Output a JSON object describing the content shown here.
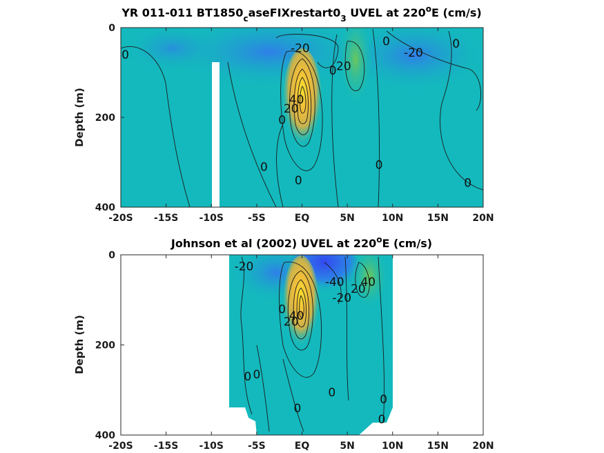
{
  "chart_data": [
    {
      "type": "heatmap",
      "title_parts": {
        "main": "YR 011-011 BT1850",
        "sub1": "c",
        "mid": "aseFIXrestart0",
        "sub2": "3",
        "after": " UVEL at 220",
        "sup": "o",
        "end": "E (cm/s)"
      },
      "ylabel": "Depth (m)",
      "xlabel": "",
      "x_ticks": [
        "-20S",
        "-15S",
        "-10S",
        "-5S",
        "EQ",
        "5N",
        "10N",
        "15N",
        "20N"
      ],
      "y_ticks": [
        "0",
        "200",
        "400"
      ],
      "xlim": [
        -20,
        20
      ],
      "ylim": [
        400,
        0
      ],
      "contour_interval": 20,
      "colors": {
        "background": "#13b9bd",
        "negative": "#2f8ce8",
        "jet_core": "#f6d630",
        "jet_mid": "#e2a94a"
      },
      "contour_labels": [
        {
          "text": "0",
          "x": -19.5,
          "y": 60
        },
        {
          "text": "0",
          "x": 9.3,
          "y": 30
        },
        {
          "text": "-20",
          "x": -0.2,
          "y": 45
        },
        {
          "text": "20",
          "x": 4.6,
          "y": 85
        },
        {
          "text": "0",
          "x": 3.4,
          "y": 95
        },
        {
          "text": "-20",
          "x": 12.3,
          "y": 55
        },
        {
          "text": "0",
          "x": 17.0,
          "y": 35
        },
        {
          "text": "20",
          "x": -1.2,
          "y": 180
        },
        {
          "text": "40",
          "x": -0.6,
          "y": 160
        },
        {
          "text": "0",
          "x": -2.2,
          "y": 205
        },
        {
          "text": "0",
          "x": -4.2,
          "y": 310
        },
        {
          "text": "0",
          "x": -0.4,
          "y": 340
        },
        {
          "text": "0",
          "x": 8.5,
          "y": 305
        },
        {
          "text": "0",
          "x": 18.3,
          "y": 345
        }
      ]
    },
    {
      "type": "heatmap",
      "title_parts": {
        "main": "Johnson et al (2002) UVEL at 220",
        "sup": "o",
        "end": "E (cm/s)"
      },
      "ylabel": "Depth (m)",
      "xlabel": "",
      "x_ticks": [
        "-20S",
        "-15S",
        "-10S",
        "-5S",
        "EQ",
        "5N",
        "10N",
        "15N",
        "20N"
      ],
      "y_ticks": [
        "0",
        "200",
        "400"
      ],
      "xlim": [
        -20,
        20
      ],
      "ylim": [
        400,
        0
      ],
      "data_extent": {
        "x_min": -8,
        "x_max": 10
      },
      "contour_interval": 20,
      "colors": {
        "background": "#13b9bd",
        "negative": "#2d5ef0",
        "jet_core": "#f6d630",
        "jet_mid": "#e2a94a",
        "north_jet": "#58c46a"
      },
      "contour_labels": [
        {
          "text": "-20",
          "x": -6.4,
          "y": 25
        },
        {
          "text": "-40",
          "x": 3.6,
          "y": 60
        },
        {
          "text": "-20",
          "x": 4.4,
          "y": 95
        },
        {
          "text": "20",
          "x": 6.2,
          "y": 75
        },
        {
          "text": "40",
          "x": 7.3,
          "y": 60
        },
        {
          "text": "0",
          "x": -2.2,
          "y": 120
        },
        {
          "text": "20",
          "x": -1.2,
          "y": 148
        },
        {
          "text": "40",
          "x": -0.6,
          "y": 135
        },
        {
          "text": "0",
          "x": -6.0,
          "y": 270
        },
        {
          "text": "0",
          "x": -5.0,
          "y": 265
        },
        {
          "text": "0",
          "x": 3.3,
          "y": 305
        },
        {
          "text": "0",
          "x": -0.5,
          "y": 340
        },
        {
          "text": "0",
          "x": 9.0,
          "y": 320
        },
        {
          "text": "0",
          "x": 8.8,
          "y": 365
        }
      ]
    }
  ]
}
